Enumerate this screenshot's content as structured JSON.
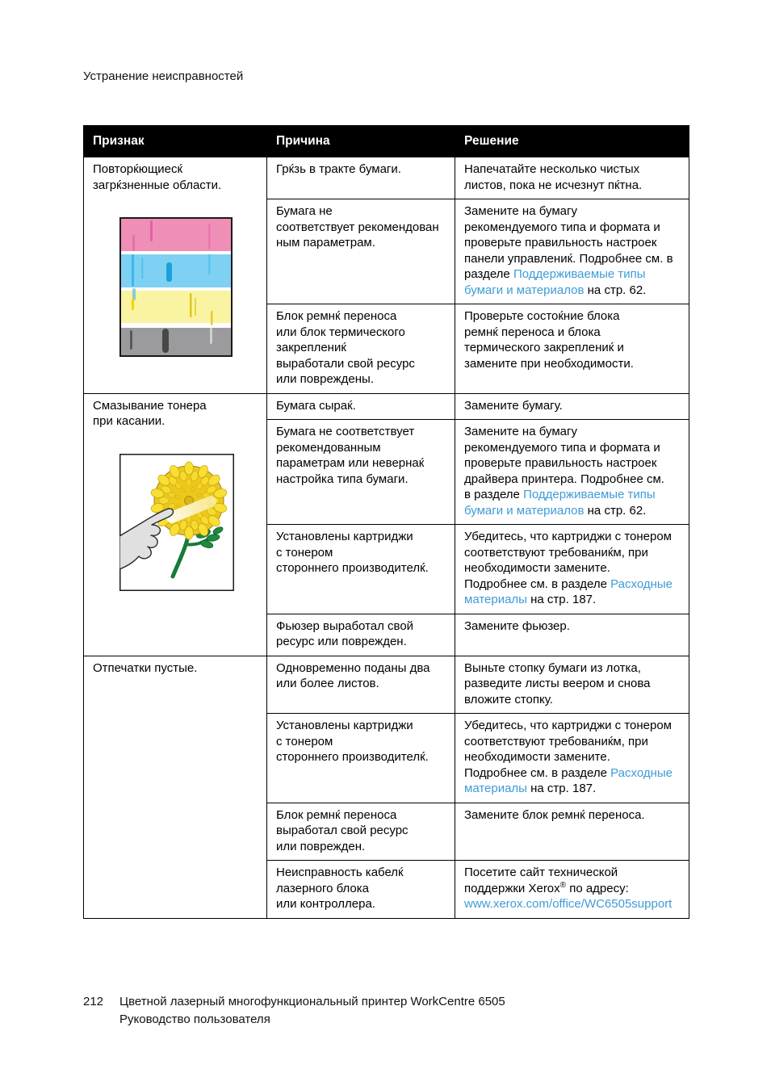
{
  "page": {
    "section_header": "Устранение неисправностей",
    "footer": {
      "page_number": "212",
      "product_line": "Цветной лазерный многофункциональный принтер WorkCentre 6505",
      "doc_line": "Руководство пользователя"
    }
  },
  "colors": {
    "link_blue": "#3e9bd6",
    "table_header_bg": "#000000",
    "table_header_text": "#ffffff"
  },
  "table": {
    "columns": [
      "Признак",
      "Причина",
      "Решение"
    ],
    "groups": [
      {
        "symptom": "Повторќющиесќ\nзагрќзненные области.",
        "image": "smudged-color-bands",
        "rows": [
          {
            "cause": "Грќзь в тракте бумаги.",
            "solution": [
              {
                "t": "Напечатайте несколько чистых\nлистов, пока не исчезнут пќтна."
              }
            ]
          },
          {
            "cause": "Бумага не\nсоответствует рекомендован\nным параметрам.",
            "solution": [
              {
                "t": "Замените на бумагу\nрекомендуемого типа и формата и\nпроверьте правильность настроек\nпанели управлениќ. Подробнее см. в\nразделе "
              },
              {
                "t": "Поддерживаемые типы\nбумаги и материалов",
                "link": true
              },
              {
                "t": " на стр. 62."
              }
            ]
          },
          {
            "cause": "Блок ремнќ переноса\nили блок термического\nзакреплениќ\nвыработали свой ресурс\nили повреждены.",
            "solution": [
              {
                "t": "Проверьте состоќние блока\nремнќ переноса и блока\nтермического закреплениќ и\nзамените при необходимости."
              }
            ]
          }
        ]
      },
      {
        "symptom": "Смазывание тонера\nпри касании.",
        "image": "toner-smudge-flower",
        "rows": [
          {
            "cause": "Бумага сыраќ.",
            "solution": [
              {
                "t": "Замените бумагу."
              }
            ]
          },
          {
            "cause": "Бумага не соответствует\nрекомендованным\nпараметрам или невернаќ\nнастройка типа бумаги.",
            "solution": [
              {
                "t": "Замените на бумагу\nрекомендуемого типа и формата и\nпроверьте правильность настроек\nдрайвера принтера. Подробнее см.\nв разделе "
              },
              {
                "t": "Поддерживаемые типы\nбумаги и материалов",
                "link": true
              },
              {
                "t": " на стр. 62."
              }
            ]
          },
          {
            "cause": "Установлены картриджи\nс тонером\nстороннего производителќ.",
            "solution": [
              {
                "t": "Убедитесь, что картриджи с тонером\nсоответствуют требованиќм, при\nнеобходимости замените.\nПодробнее см. в разделе "
              },
              {
                "t": "Расходные\nматериалы",
                "link": true
              },
              {
                "t": " на стр. 187."
              }
            ]
          },
          {
            "cause": "Фьюзер выработал свой\nресурс или поврежден.",
            "solution": [
              {
                "t": "Замените фьюзер."
              }
            ]
          }
        ]
      },
      {
        "symptom": "Отпечатки пустые.",
        "image": null,
        "rows": [
          {
            "cause": "Одновременно поданы два\nили более листов.",
            "solution": [
              {
                "t": "Выньте стопку бумаги из лотка,\nразведите листы веером и снова\nвложите стопку."
              }
            ]
          },
          {
            "cause": "Установлены картриджи\nс тонером\nстороннего производителќ.",
            "solution": [
              {
                "t": "Убедитесь, что картриджи с тонером\nсоответствуют требованиќм, при\nнеобходимости замените.\nПодробнее см. в разделе "
              },
              {
                "t": "Расходные\nматериалы",
                "link": true
              },
              {
                "t": " на стр. 187."
              }
            ]
          },
          {
            "cause": "Блок ремнќ переноса\nвыработал свой ресурс\nили поврежден.",
            "solution": [
              {
                "t": "Замените блок ремнќ переноса."
              }
            ]
          },
          {
            "cause": "Неисправность кабелќ\nлазерного блока\nили контроллера.",
            "solution": [
              {
                "t": "Посетите сайт технической\nподдержки Xerox"
              },
              {
                "t": "®",
                "sup": true
              },
              {
                "t": " по адресу:\n"
              },
              {
                "t": "www.xerox.com/office/WC6505support",
                "link": true
              }
            ]
          }
        ]
      }
    ]
  }
}
